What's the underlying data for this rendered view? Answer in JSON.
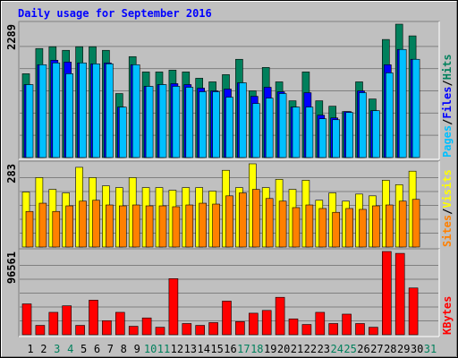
{
  "chart_data": {
    "type": "bar",
    "title": "Daily usage for September 2016",
    "categories": [
      "1",
      "2",
      "3",
      "4",
      "5",
      "6",
      "7",
      "8",
      "9",
      "10",
      "11",
      "12",
      "13",
      "14",
      "15",
      "16",
      "17",
      "18",
      "19",
      "20",
      "21",
      "22",
      "23",
      "24",
      "25",
      "26",
      "27",
      "28",
      "29",
      "30",
      "31"
    ],
    "category_colors": [
      "#000000",
      "#000000",
      "#00805c",
      "#00805c",
      "#000000",
      "#000000",
      "#000000",
      "#000000",
      "#000000",
      "#00805c",
      "#00805c",
      "#000000",
      "#000000",
      "#000000",
      "#000000",
      "#000000",
      "#00805c",
      "#00805c",
      "#000000",
      "#000000",
      "#000000",
      "#000000",
      "#000000",
      "#00805c",
      "#00805c",
      "#000000",
      "#000000",
      "#000000",
      "#000000",
      "#000000",
      "#00805c"
    ],
    "legend_separator": "/",
    "panels": [
      {
        "ylim": [
          0,
          2289
        ],
        "yticks": [
          2289
        ],
        "series": [
          {
            "name": "Hits",
            "color": "#00805c",
            "values": [
              1438,
              1871,
              1902,
              1840,
              1902,
              1902,
              1840,
              1098,
              1732,
              1469,
              1469,
              1500,
              1469,
              1361,
              1299,
              1423,
              1686,
              1144,
              1546,
              1299,
              974,
              1469,
              974,
              881,
              789,
              1299,
              1005,
              2026,
              2289,
              2088,
              null
            ]
          },
          {
            "name": "Files",
            "color": "#0000ff",
            "values": [
              1252,
              1593,
              1670,
              1639,
              1624,
              1608,
              1624,
              866,
              1593,
              1222,
              1252,
              1268,
              1252,
              1191,
              1144,
              1175,
              1283,
              1051,
              1206,
              1129,
              866,
              1113,
              727,
              680,
              789,
              1144,
              804,
              1593,
              1855,
              1686,
              null
            ]
          },
          {
            "name": "Pages",
            "color": "#00c0ff",
            "values": [
              1252,
              1593,
              1624,
              1438,
              1624,
              1608,
              1608,
              866,
              1593,
              1222,
              1252,
              1222,
              1206,
              1129,
              1129,
              1036,
              1283,
              927,
              1020,
              1098,
              866,
              866,
              665,
              649,
              773,
              1113,
              804,
              1453,
              1855,
              1686,
              null
            ]
          }
        ]
      },
      {
        "ylim": [
          0,
          283
        ],
        "yticks": [
          283
        ],
        "series": [
          {
            "name": "Visits",
            "color": "#ffff00",
            "values": [
              187,
              236,
              196,
              184,
              271,
              236,
              208,
              202,
              236,
              202,
              202,
              193,
              202,
              202,
              190,
              261,
              202,
              283,
              202,
              230,
              196,
              227,
              159,
              184,
              156,
              180,
              174,
              227,
              212,
              258,
              null
            ]
          },
          {
            "name": "Sites",
            "color": "#ff8000",
            "values": [
              121,
              149,
              121,
              140,
              156,
              159,
              143,
              140,
              143,
              140,
              140,
              137,
              143,
              149,
              146,
              174,
              184,
              196,
              165,
              156,
              134,
              143,
              131,
              118,
              131,
              128,
              140,
              143,
              156,
              162,
              null
            ]
          }
        ]
      },
      {
        "ylim": [
          0,
          96561
        ],
        "yticks": [
          96561
        ],
        "series": [
          {
            "name": "KBytes",
            "color": "#ff0000",
            "values": [
              35800,
              10850,
              26000,
              33600,
              10850,
              40100,
              16300,
              26000,
              9800,
              19500,
              8700,
              65100,
              13000,
              10850,
              14100,
              39000,
              15200,
              25000,
              28200,
              43400,
              18400,
              11900,
              26000,
              13000,
              23900,
              13000,
              8700,
              96561,
              94400,
              54250,
              null
            ]
          }
        ]
      }
    ]
  }
}
